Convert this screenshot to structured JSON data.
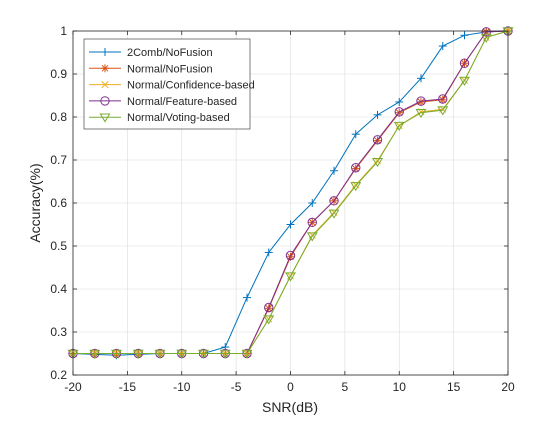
{
  "chart_data": {
    "type": "line",
    "title": "",
    "xlabel": "SNR(dB)",
    "ylabel": "Accuracy(%)",
    "xlim": [
      -20,
      20
    ],
    "ylim": [
      0.2,
      1
    ],
    "xticks": [
      -20,
      -15,
      -10,
      -5,
      0,
      5,
      10,
      15,
      20
    ],
    "yticks": [
      0.2,
      0.3,
      0.4,
      0.5,
      0.6,
      0.7,
      0.8,
      0.9,
      1
    ],
    "grid": true,
    "legend_position": "top-left",
    "x": [
      -20,
      -18,
      -16,
      -14,
      -12,
      -10,
      -8,
      -6,
      -4,
      -2,
      0,
      2,
      4,
      6,
      8,
      10,
      12,
      14,
      16,
      18,
      20
    ],
    "series": [
      {
        "name": "2Comb/NoFusion",
        "color": "#0072bd",
        "marker": "plus",
        "values": [
          0.25,
          0.248,
          0.246,
          0.248,
          0.25,
          0.25,
          0.25,
          0.265,
          0.38,
          0.485,
          0.55,
          0.6,
          0.675,
          0.76,
          0.805,
          0.835,
          0.89,
          0.965,
          0.99,
          0.998,
          1.0
        ]
      },
      {
        "name": "Normal/NoFusion",
        "color": "#d95319",
        "marker": "asterisk",
        "values": [
          0.25,
          0.25,
          0.25,
          0.25,
          0.25,
          0.25,
          0.25,
          0.25,
          0.25,
          0.355,
          0.475,
          0.555,
          0.605,
          0.68,
          0.745,
          0.81,
          0.835,
          0.84,
          0.925,
          0.998,
          1.0
        ]
      },
      {
        "name": "Normal/Confidence-based",
        "color": "#edb120",
        "marker": "x",
        "values": [
          0.25,
          0.25,
          0.25,
          0.25,
          0.25,
          0.25,
          0.25,
          0.25,
          0.25,
          0.33,
          0.43,
          0.525,
          0.578,
          0.642,
          0.698,
          0.78,
          0.812,
          0.818,
          0.885,
          0.985,
          1.0
        ]
      },
      {
        "name": "Normal/Feature-based",
        "color": "#7e2f8e",
        "marker": "circle",
        "values": [
          0.25,
          0.25,
          0.25,
          0.25,
          0.25,
          0.25,
          0.25,
          0.25,
          0.25,
          0.357,
          0.478,
          0.555,
          0.605,
          0.682,
          0.747,
          0.812,
          0.837,
          0.842,
          0.925,
          0.998,
          1.0
        ]
      },
      {
        "name": "Normal/Voting-based",
        "color": "#77ac30",
        "marker": "triangle-down",
        "values": [
          0.25,
          0.25,
          0.25,
          0.25,
          0.25,
          0.25,
          0.25,
          0.25,
          0.25,
          0.33,
          0.43,
          0.523,
          0.576,
          0.64,
          0.696,
          0.78,
          0.81,
          0.816,
          0.885,
          0.985,
          1.0
        ]
      }
    ]
  }
}
